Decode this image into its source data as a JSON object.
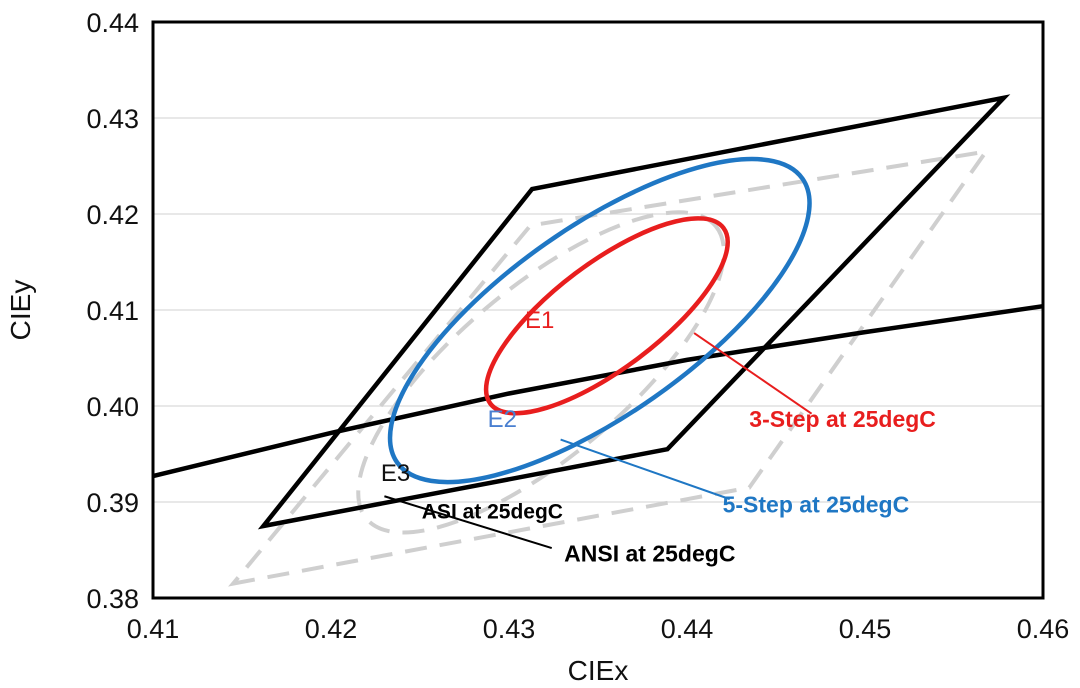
{
  "chart_data": {
    "type": "line",
    "title": "",
    "xlabel": "CIEx",
    "ylabel": "CIEy",
    "xlim": [
      0.41,
      0.46
    ],
    "ylim": [
      0.38,
      0.44
    ],
    "xticks": [
      "0.41",
      "0.42",
      "0.43",
      "0.44",
      "0.45",
      "0.46"
    ],
    "yticks": [
      "0.38",
      "0.39",
      "0.40",
      "0.41",
      "0.42",
      "0.43",
      "0.44"
    ],
    "grid": "horizontal",
    "legend": "none",
    "series": [
      {
        "name": "ANSI at 25degC",
        "color": "#000000",
        "style": "solid",
        "closed": true,
        "points": [
          [
            0.4162,
            0.3875
          ],
          [
            0.4389,
            0.3955
          ],
          [
            0.4578,
            0.4321
          ],
          [
            0.4313,
            0.4226
          ]
        ]
      },
      {
        "name": "",
        "color": "#000000",
        "style": "solid",
        "closed": false,
        "points": [
          [
            0.41,
            0.3927
          ],
          [
            0.42,
            0.3972
          ],
          [
            0.43,
            0.4013
          ],
          [
            0.44,
            0.4048
          ],
          [
            0.45,
            0.4077
          ],
          [
            0.46,
            0.4104
          ]
        ]
      },
      {
        "name": "5-Step at 25degC",
        "color": "#1f77c4",
        "style": "solid",
        "closed": true,
        "ellipse": {
          "cx": 0.4351,
          "cy": 0.4089,
          "a": 0.0139,
          "b": 0.0098,
          "rotate_deg": -35
        }
      },
      {
        "name": "3-Step at 25degC",
        "color": "#e81e1e",
        "style": "solid",
        "closed": true,
        "ellipse": {
          "cx": 0.4355,
          "cy": 0.4094,
          "a": 0.0082,
          "b": 0.0055,
          "rotate_deg": -37
        }
      },
      {
        "name": "ASI at 25degC",
        "color": "#cfcfcf",
        "style": "dashed",
        "closed": true,
        "points": [
          [
            0.4145,
            0.3815
          ],
          [
            0.4435,
            0.3915
          ],
          [
            0.4568,
            0.4265
          ],
          [
            0.4312,
            0.4188
          ]
        ]
      },
      {
        "name": "",
        "color": "#cfcfcf",
        "style": "dashed",
        "closed": true,
        "ellipse": {
          "cx": 0.4318,
          "cy": 0.4035,
          "a": 0.0128,
          "b": 0.0088,
          "rotate_deg": -40
        }
      }
    ],
    "annotations": [
      {
        "text": "E1",
        "x": 0.4309,
        "y": 0.4081,
        "color": "#e81e1e",
        "weight": "normal"
      },
      {
        "text": "E2",
        "x": 0.4288,
        "y": 0.3978,
        "color": "#4a7fd0",
        "weight": "normal"
      },
      {
        "text": "E3",
        "x": 0.4228,
        "y": 0.3922,
        "color": "#111111",
        "weight": "normal"
      },
      {
        "text": "3-Step at 25degC",
        "x": 0.4435,
        "y": 0.3978,
        "color": "#e81e1e",
        "weight": "bold",
        "leader": [
          [
            0.4404,
            0.4076
          ],
          [
            0.447,
            0.3992
          ]
        ]
      },
      {
        "text": "5-Step at 25degC",
        "x": 0.442,
        "y": 0.3889,
        "color": "#1f77c4",
        "weight": "bold",
        "leader": [
          [
            0.4329,
            0.3965
          ],
          [
            0.4424,
            0.3903
          ]
        ]
      },
      {
        "text": "ASI at 25degC",
        "x": 0.4251,
        "y": 0.3883,
        "color": "#000000",
        "weight": "bold"
      },
      {
        "text": "ANSI at 25degC",
        "x": 0.4331,
        "y": 0.3838,
        "color": "#000000",
        "weight": "bold",
        "leader": [
          [
            0.423,
            0.3906
          ],
          [
            0.4324,
            0.3852
          ]
        ]
      }
    ]
  }
}
